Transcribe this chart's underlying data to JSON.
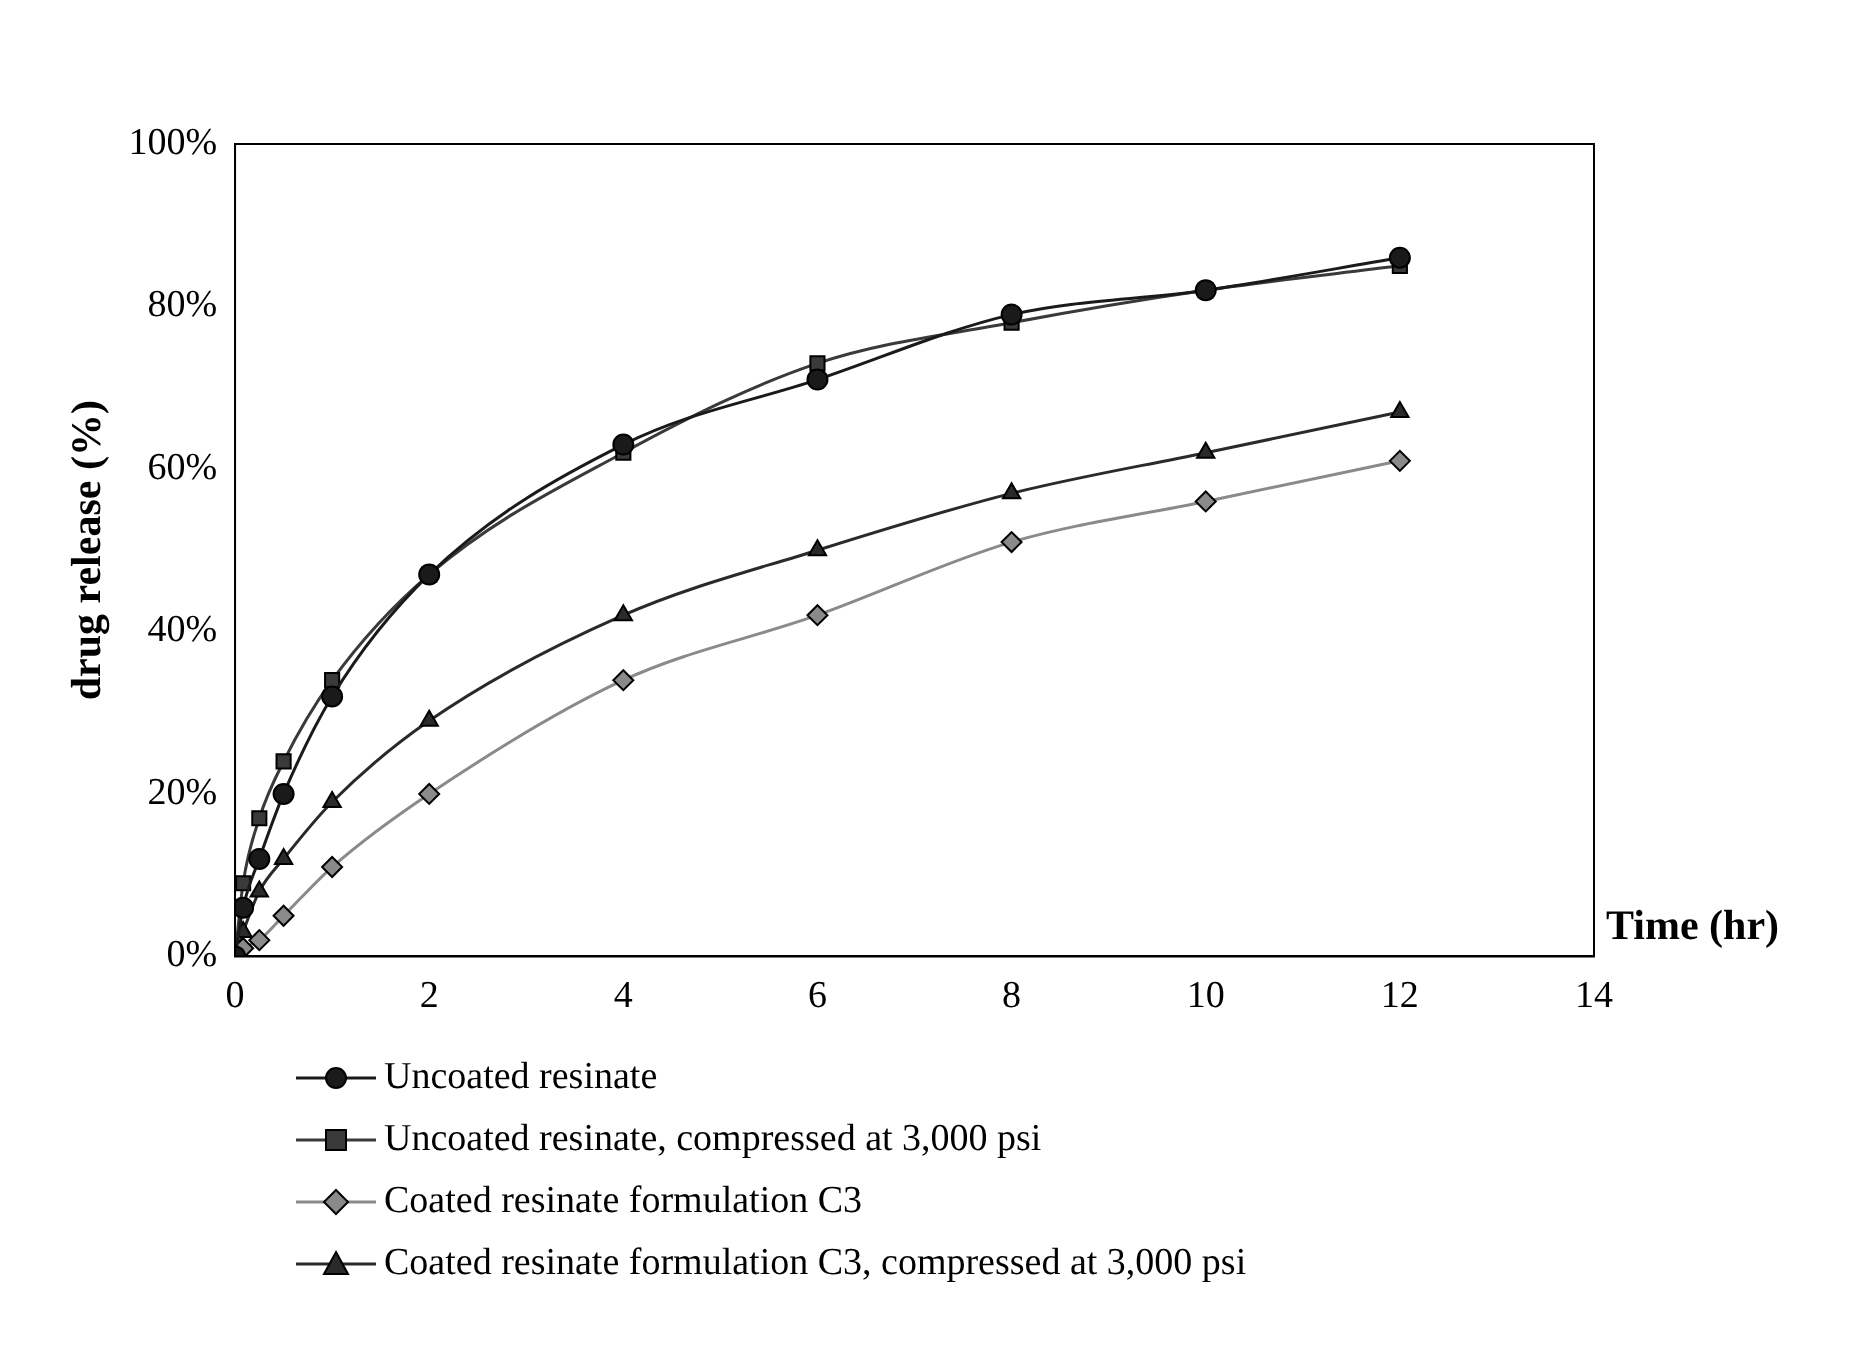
{
  "chart_data": {
    "type": "line",
    "xlabel": "Time (hr)",
    "ylabel": "drug release (%)",
    "x": [
      0,
      0.083,
      0.25,
      0.5,
      1,
      2,
      4,
      6,
      8,
      10,
      12
    ],
    "xlim": [
      0,
      14
    ],
    "xticks": [
      0,
      2,
      4,
      6,
      8,
      10,
      12,
      14
    ],
    "ylim": [
      0,
      100
    ],
    "yticks": [
      {
        "value": 0,
        "label": "0%"
      },
      {
        "value": 20,
        "label": "20%"
      },
      {
        "value": 40,
        "label": "40%"
      },
      {
        "value": 60,
        "label": "60%"
      },
      {
        "value": 80,
        "label": "80%"
      },
      {
        "value": 100,
        "label": "100%"
      }
    ],
    "grid": false,
    "legend": "bottom",
    "line_style": "solid",
    "series": [
      {
        "name": "Uncoated resinate",
        "color": "#1a1a1a",
        "marker": "circle",
        "values": [
          0,
          6,
          12,
          20,
          32,
          47,
          63,
          71,
          79,
          82,
          86
        ]
      },
      {
        "name": "Uncoated resinate, compressed at 3,000 psi",
        "color": "#3a3a3a",
        "marker": "square",
        "values": [
          0,
          9,
          17,
          24,
          34,
          47,
          62,
          73,
          78,
          82,
          85
        ]
      },
      {
        "name": "Coated resinate formulation C3",
        "color": "#8a8a8a",
        "marker": "diamond",
        "values": [
          0,
          1,
          2,
          5,
          11,
          20,
          34,
          42,
          51,
          56,
          61
        ]
      },
      {
        "name": "Coated resinate formulation C3, compressed at 3,000 psi",
        "color": "#2a2a2a",
        "marker": "triangle",
        "values": [
          0,
          3,
          8,
          12,
          19,
          29,
          42,
          50,
          57,
          62,
          67
        ]
      }
    ]
  }
}
